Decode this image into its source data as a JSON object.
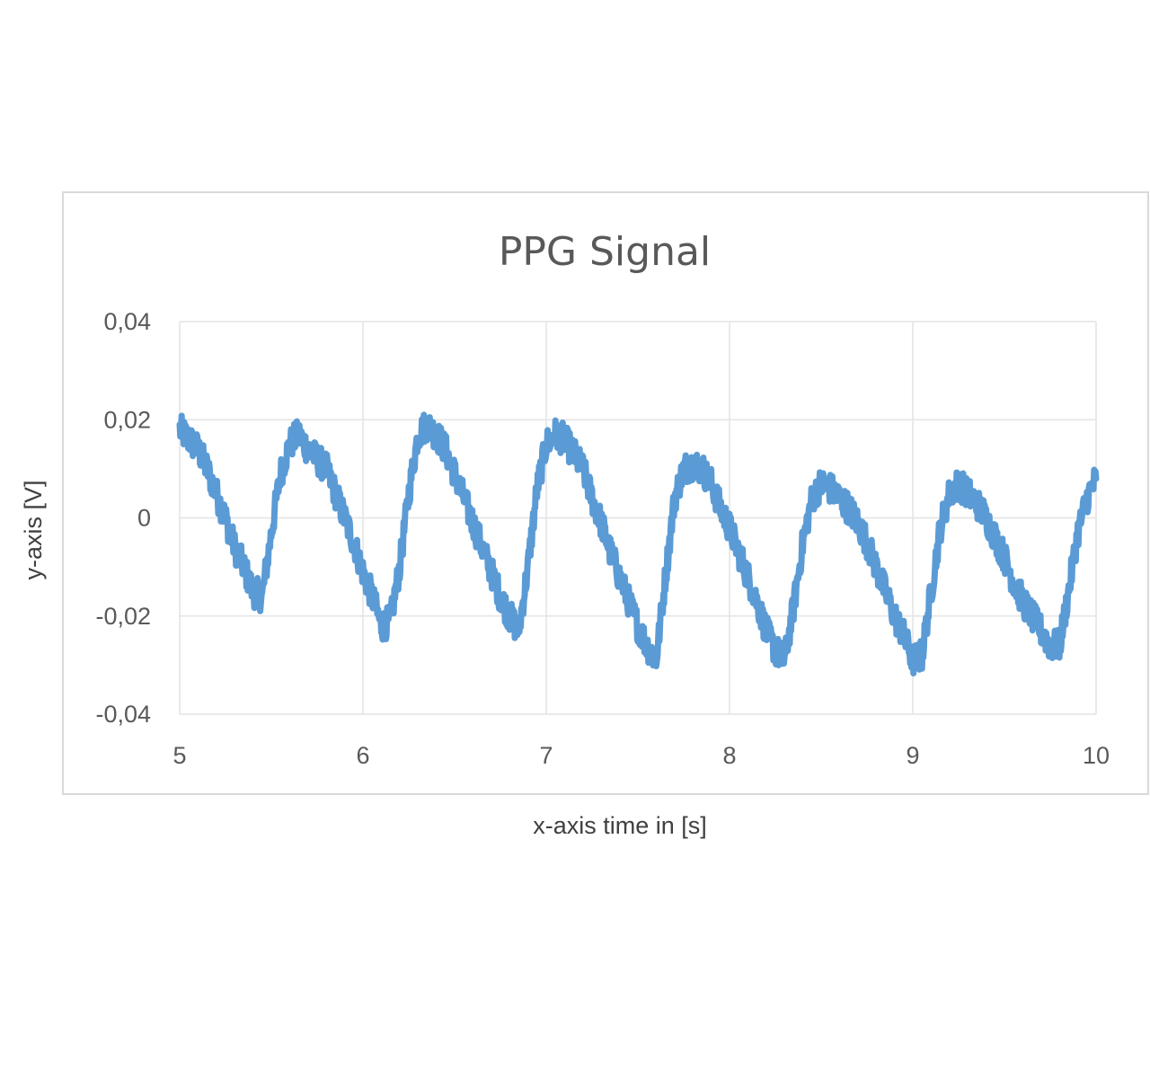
{
  "chart_data": {
    "type": "line",
    "title": "PPG Signal",
    "xlabel": "x-axis time in [s]",
    "ylabel": "y-axis [V]",
    "xlim": [
      5,
      10
    ],
    "ylim": [
      -0.04,
      0.04
    ],
    "x_ticks": [
      "5",
      "6",
      "7",
      "8",
      "9",
      "10"
    ],
    "y_ticks": [
      "0,04",
      "0,02",
      "0",
      "-0,02",
      "-0,04"
    ],
    "grid": true,
    "legend": "none",
    "colors": {
      "series": "#5b9bd5",
      "grid": "#e4e4e4",
      "text": "#595959"
    },
    "series": [
      {
        "x": [
          5.0,
          5.05,
          5.1,
          5.15,
          5.2,
          5.25,
          5.3,
          5.35,
          5.4,
          5.45,
          5.5,
          5.55,
          5.6,
          5.65,
          5.7,
          5.75,
          5.8,
          5.85,
          5.9,
          5.95,
          6.0,
          6.05,
          6.1,
          6.15,
          6.2,
          6.25,
          6.3,
          6.35,
          6.4,
          6.45,
          6.5,
          6.55,
          6.6,
          6.65,
          6.7,
          6.75,
          6.8,
          6.85,
          6.9,
          6.95,
          7.0,
          7.05,
          7.1,
          7.15,
          7.2,
          7.25,
          7.3,
          7.35,
          7.4,
          7.45,
          7.5,
          7.55,
          7.6,
          7.65,
          7.7,
          7.75,
          7.8,
          7.85,
          7.9,
          7.95,
          8.0,
          8.05,
          8.1,
          8.15,
          8.2,
          8.25,
          8.3,
          8.35,
          8.4,
          8.45,
          8.5,
          8.55,
          8.6,
          8.65,
          8.7,
          8.75,
          8.8,
          8.85,
          8.9,
          8.95,
          9.0,
          9.05,
          9.1,
          9.15,
          9.2,
          9.25,
          9.3,
          9.35,
          9.4,
          9.45,
          9.5,
          9.55,
          9.6,
          9.65,
          9.7,
          9.75,
          9.8,
          9.85,
          9.9,
          9.95,
          10.0
        ],
        "values": [
          0.018,
          0.016,
          0.014,
          0.01,
          0.005,
          0.0,
          -0.006,
          -0.01,
          -0.015,
          -0.016,
          -0.003,
          0.009,
          0.015,
          0.017,
          0.014,
          0.012,
          0.01,
          0.005,
          0.0,
          -0.005,
          -0.011,
          -0.016,
          -0.022,
          -0.021,
          -0.01,
          0.005,
          0.017,
          0.019,
          0.017,
          0.014,
          0.009,
          0.004,
          -0.001,
          -0.006,
          -0.011,
          -0.016,
          -0.02,
          -0.023,
          -0.01,
          0.006,
          0.015,
          0.017,
          0.016,
          0.013,
          0.01,
          0.004,
          -0.001,
          -0.007,
          -0.012,
          -0.017,
          -0.022,
          -0.026,
          -0.029,
          -0.012,
          0.004,
          0.01,
          0.011,
          0.01,
          0.007,
          0.002,
          -0.002,
          -0.007,
          -0.012,
          -0.017,
          -0.023,
          -0.027,
          -0.029,
          -0.018,
          -0.005,
          0.004,
          0.007,
          0.006,
          0.004,
          0.002,
          -0.001,
          -0.005,
          -0.01,
          -0.015,
          -0.02,
          -0.024,
          -0.029,
          -0.028,
          -0.015,
          -0.002,
          0.005,
          0.007,
          0.005,
          0.003,
          0.0,
          -0.004,
          -0.008,
          -0.013,
          -0.017,
          -0.02,
          -0.023,
          -0.026,
          -0.026,
          -0.015,
          -0.003,
          0.004,
          0.008
        ]
      }
    ]
  }
}
